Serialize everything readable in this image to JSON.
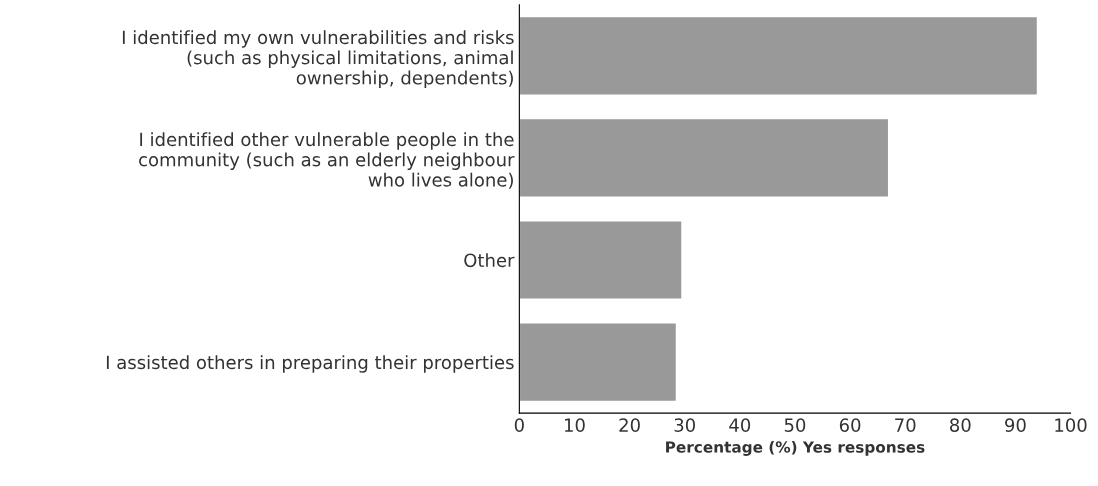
{
  "chart_data": {
    "type": "bar",
    "orientation": "horizontal",
    "categories": [
      "I identified my own vulnerabilities and risks\n(such as physical limitations, animal\nownership, dependents)",
      "I identified other vulnerable people in the\ncommunity (such as an elderly neighbour\nwho lives alone)",
      "Other",
      "I assisted others in preparing their properties"
    ],
    "values": [
      94,
      67,
      29.5,
      28.5
    ],
    "color": "#999999",
    "xlim": [
      0,
      100
    ],
    "xticks": [
      0,
      10,
      20,
      30,
      40,
      50,
      60,
      70,
      80,
      90,
      100
    ],
    "xlabel": "Percentage (%) Yes responses",
    "grid": false,
    "legend": false
  }
}
